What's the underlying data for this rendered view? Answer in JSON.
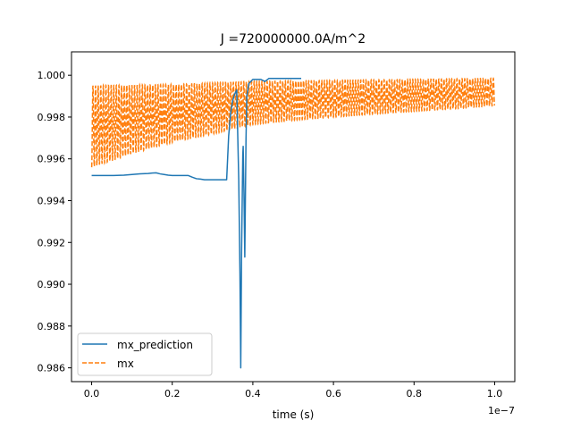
{
  "chart_data": {
    "type": "line",
    "title": "J =720000000.0A/m^2",
    "xlabel": "time (s)",
    "ylabel": "",
    "x_offset_label": "1e−7",
    "xlim": [
      -0.05,
      1.05
    ],
    "ylim": [
      0.98534,
      1.00112
    ],
    "x_ticks": [
      0.0,
      0.2,
      0.4,
      0.6,
      0.8,
      1.0
    ],
    "x_tick_labels": [
      "0.0",
      "0.2",
      "0.4",
      "0.6",
      "0.8",
      "1.0"
    ],
    "y_ticks": [
      0.986,
      0.988,
      0.99,
      0.992,
      0.994,
      0.996,
      0.998,
      1.0
    ],
    "y_tick_labels": [
      "0.986",
      "0.988",
      "0.990",
      "0.992",
      "0.994",
      "0.996",
      "0.998",
      "1.000"
    ],
    "grid": false,
    "legend_position": "lower-left",
    "series": [
      {
        "name": "mx_prediction",
        "style": "solid",
        "color": "#1f77b4",
        "x": [
          0.0,
          0.05,
          0.08,
          0.1,
          0.12,
          0.14,
          0.15,
          0.16,
          0.17,
          0.18,
          0.19,
          0.2,
          0.22,
          0.24,
          0.25,
          0.26,
          0.27,
          0.28,
          0.3,
          0.32,
          0.33,
          0.335,
          0.34,
          0.345,
          0.35,
          0.355,
          0.36,
          0.365,
          0.368,
          0.37,
          0.372,
          0.375,
          0.376,
          0.378,
          0.38,
          0.383,
          0.385,
          0.39,
          0.4,
          0.42,
          0.43,
          0.44,
          0.45,
          0.5,
          0.52
        ],
        "values": [
          0.9952,
          0.9952,
          0.99522,
          0.99525,
          0.99528,
          0.9953,
          0.99532,
          0.99533,
          0.99528,
          0.99525,
          0.99522,
          0.9952,
          0.9952,
          0.9952,
          0.99512,
          0.99505,
          0.99503,
          0.995,
          0.995,
          0.995,
          0.995,
          0.995,
          0.9971,
          0.9982,
          0.9988,
          0.9991,
          0.9993,
          0.995,
          0.9905,
          0.986,
          0.9915,
          0.9962,
          0.9966,
          0.9943,
          0.9913,
          0.9969,
          0.999,
          0.9996,
          0.9998,
          0.9998,
          0.9997,
          0.99985,
          0.99985,
          0.99985,
          0.99985
        ]
      },
      {
        "name": "mx",
        "style": "dashed",
        "color": "#ff7f0e",
        "upper_envelope": [
          [
            0.0,
            0.9995
          ],
          [
            0.2,
            0.99955
          ],
          [
            0.4,
            0.9997
          ],
          [
            0.6,
            0.99975
          ],
          [
            0.8,
            0.9998
          ],
          [
            1.0,
            0.99985
          ]
        ],
        "lower_envelope": [
          [
            0.0,
            0.9956
          ],
          [
            0.1,
            0.99625
          ],
          [
            0.2,
            0.9968
          ],
          [
            0.3,
            0.9972
          ],
          [
            0.4,
            0.99765
          ],
          [
            0.5,
            0.99785
          ],
          [
            0.6,
            0.998
          ],
          [
            0.7,
            0.99815
          ],
          [
            0.8,
            0.99828
          ],
          [
            0.9,
            0.9984
          ],
          [
            1.0,
            0.99855
          ]
        ]
      }
    ]
  }
}
